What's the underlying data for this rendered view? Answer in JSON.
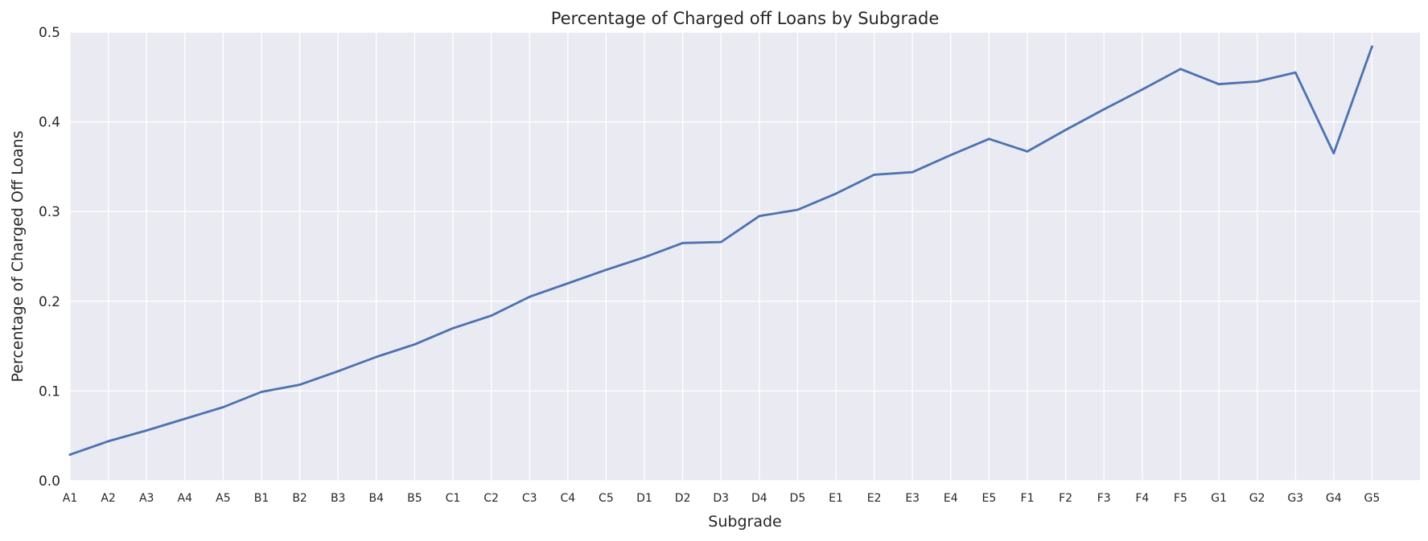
{
  "chart_data": {
    "type": "line",
    "title": "Percentage of Charged off Loans by Subgrade",
    "xlabel": "Subgrade",
    "ylabel": "Percentage of Charged Off Loans",
    "ylim": [
      0,
      0.5
    ],
    "yticks": [
      "0.0",
      "0.1",
      "0.2",
      "0.3",
      "0.4",
      "0.5"
    ],
    "grid": true,
    "categories": [
      "A1",
      "A2",
      "A3",
      "A4",
      "A5",
      "B1",
      "B2",
      "B3",
      "B4",
      "B5",
      "C1",
      "C2",
      "C3",
      "C4",
      "C5",
      "D1",
      "D2",
      "D3",
      "D4",
      "D5",
      "E1",
      "E2",
      "E3",
      "E4",
      "E5",
      "F1",
      "F2",
      "F3",
      "F4",
      "F5",
      "G1",
      "G2",
      "G3",
      "G4",
      "G5"
    ],
    "series": [
      {
        "values": [
          0.029,
          0.044,
          0.056,
          0.069,
          0.082,
          0.099,
          0.107,
          0.122,
          0.138,
          0.152,
          0.17,
          0.184,
          0.205,
          0.22,
          0.235,
          0.249,
          0.265,
          0.266,
          0.295,
          0.302,
          0.32,
          0.341,
          0.344,
          0.363,
          0.381,
          0.367,
          0.391,
          0.414,
          0.436,
          0.459,
          0.442,
          0.445,
          0.455,
          0.365,
          0.484
        ]
      }
    ],
    "colors": {
      "line": "#4c72b0",
      "plot_background": "#eaeaf2",
      "grid": "#ffffff"
    }
  }
}
